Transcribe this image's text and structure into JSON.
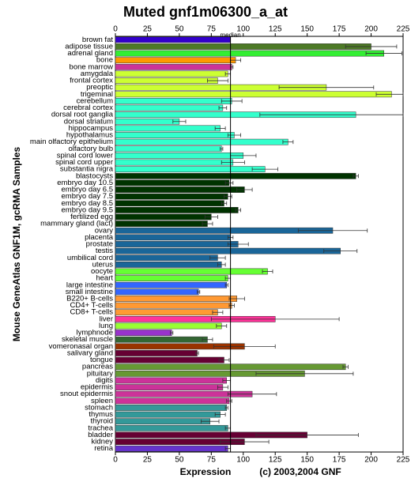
{
  "chart_data": {
    "type": "bar",
    "orientation": "horizontal",
    "title": "Muted gnf1m06300_a_at",
    "y_label": "Mouse GeneAtlas GNF1M, gcRMA Samples",
    "x_label": "Expression",
    "copyright": "(c) 2003,2004 GNF",
    "median_label": "median",
    "median": 90,
    "xlim": [
      0,
      225
    ],
    "xticks": [
      0,
      25,
      50,
      75,
      100,
      125,
      150,
      175,
      200,
      225
    ],
    "categories": [
      "brown fat",
      "adipose tissue",
      "adrenal gland",
      "bone",
      "bone marrow",
      "amygdala",
      "frontal cortex",
      "preoptic",
      "trigeminal",
      "cerebellum",
      "cerebral cortex",
      "dorsal root ganglia",
      "dorsal striatum",
      "hippocampus",
      "hypothalamus",
      "main olfactory epithelium",
      "olfactory bulb",
      "spinal cord lower",
      "spinal cord upper",
      "substantia nigra",
      "blastocysts",
      "embryo day 10.5",
      "embryo day 6.5",
      "embryo day 7.5",
      "embryo day 8.5",
      "embryo day 9.5",
      "fertilized egg",
      "mammary gland (lact)",
      "ovary",
      "placenta",
      "prostate",
      "testis",
      "umbilical cord",
      "uterus",
      "oocyte",
      "heart",
      "large intestine",
      "small intestine",
      "B220+ B-cells",
      "CD4+ T-cells",
      "CD8+ T-cells",
      "liver",
      "lung",
      "lymphnode",
      "skeletal muscle",
      "vomeronasal organ",
      "salivary gland",
      "tongue",
      "pancreas",
      "pituitary",
      "digits",
      "epidermis",
      "snout epidermis",
      "spleen",
      "stomach",
      "thymus",
      "thyroid",
      "trachea",
      "bladder",
      "kidney",
      "retina"
    ],
    "values": [
      90,
      200,
      210,
      94,
      91,
      88,
      80,
      165,
      216,
      91,
      84,
      188,
      50,
      82,
      93,
      135,
      83,
      100,
      92,
      117,
      188,
      89,
      101,
      88,
      85,
      96,
      75,
      72,
      170,
      90,
      96,
      176,
      80,
      83,
      119,
      88,
      87,
      65,
      95,
      91,
      80,
      125,
      83,
      44,
      72,
      101,
      64,
      85,
      180,
      148,
      87,
      84,
      107,
      89,
      87,
      82,
      74,
      88,
      150,
      101,
      88
    ],
    "errors": [
      0,
      20,
      14,
      4,
      1,
      2,
      8,
      37,
      12,
      8,
      3,
      75,
      5,
      4,
      5,
      4,
      1,
      10,
      9,
      10,
      2,
      3,
      6,
      3,
      2,
      2,
      5,
      4,
      27,
      2,
      8,
      13,
      6,
      3,
      4,
      2,
      1,
      1,
      6,
      2,
      4,
      50,
      4,
      1,
      4,
      24,
      1,
      4,
      2,
      38,
      3,
      4,
      19,
      2,
      1,
      4,
      7,
      2,
      40,
      19,
      2
    ],
    "colors": [
      "#3300cc",
      "#4d7a26",
      "#33ee33",
      "#ff9900",
      "#cc3399",
      "#ccff33",
      "#ccff33",
      "#ccff33",
      "#ccff33",
      "#33ffcc",
      "#33ffcc",
      "#33ffcc",
      "#33ffcc",
      "#33ffcc",
      "#33ffcc",
      "#33ffcc",
      "#33ffcc",
      "#33ffcc",
      "#33ffcc",
      "#33ffcc",
      "#003300",
      "#003300",
      "#003300",
      "#003300",
      "#003300",
      "#003300",
      "#003300",
      "#003300",
      "#1a6699",
      "#1a6699",
      "#1a6699",
      "#1a6699",
      "#1a6699",
      "#1a6699",
      "#66ff33",
      "#66ff33",
      "#3366ff",
      "#3366ff",
      "#ff9933",
      "#ff9933",
      "#ff9933",
      "#ff3399",
      "#99ff33",
      "#9933cc",
      "#336633",
      "#993300",
      "#660033",
      "#660033",
      "#669933",
      "#669933",
      "#cc3399",
      "#cc3399",
      "#cc3399",
      "#cc3399",
      "#339999",
      "#339999",
      "#339999",
      "#339999",
      "#660033",
      "#660033",
      "#6633cc"
    ]
  }
}
